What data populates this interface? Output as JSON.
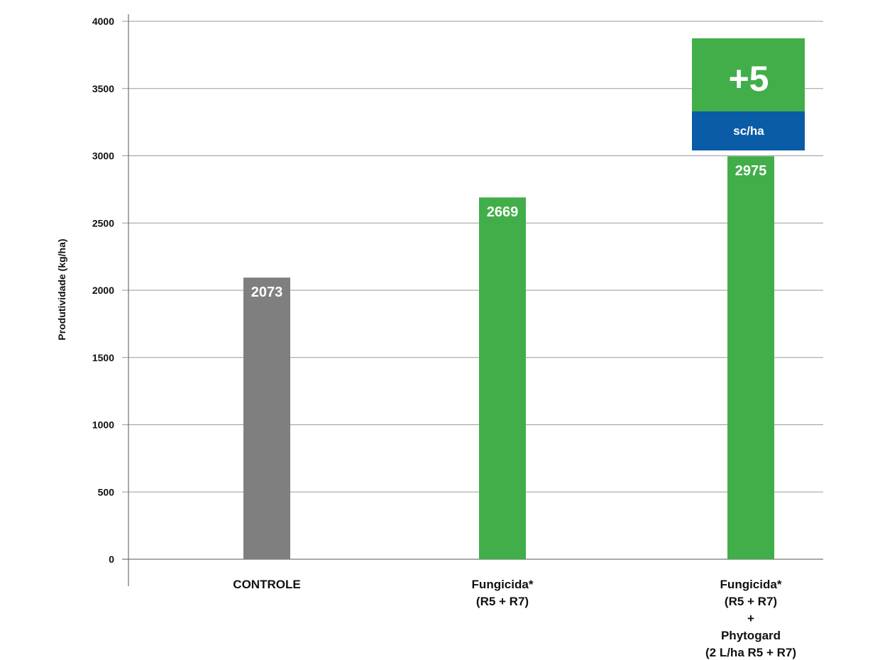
{
  "chart_data": {
    "type": "bar",
    "ylabel": "Produtividade (kg/ha)",
    "ylim": [
      0,
      4000
    ],
    "yticks": [
      0,
      500,
      1000,
      1500,
      2000,
      2500,
      3000,
      3500,
      4000
    ],
    "grid": true,
    "categories": [
      [
        "CONTROLE"
      ],
      [
        "Fungicida*",
        "(R5 + R7)"
      ],
      [
        "Fungicida*",
        "(R5 + R7)",
        "+",
        "Phytogard",
        "(2 L/ha R5 + R7)"
      ]
    ],
    "values": [
      2073,
      2669,
      2975
    ],
    "data_labels": [
      "2073",
      "2669",
      "2975"
    ],
    "bar_colors": [
      "#7f7f7f",
      "#41ae4a",
      "#41ae4a"
    ],
    "annotation": {
      "value": "+5",
      "unit": "sc/ha",
      "top_color": "#41ae4a",
      "bottom_color": "#0a5ca6"
    }
  }
}
